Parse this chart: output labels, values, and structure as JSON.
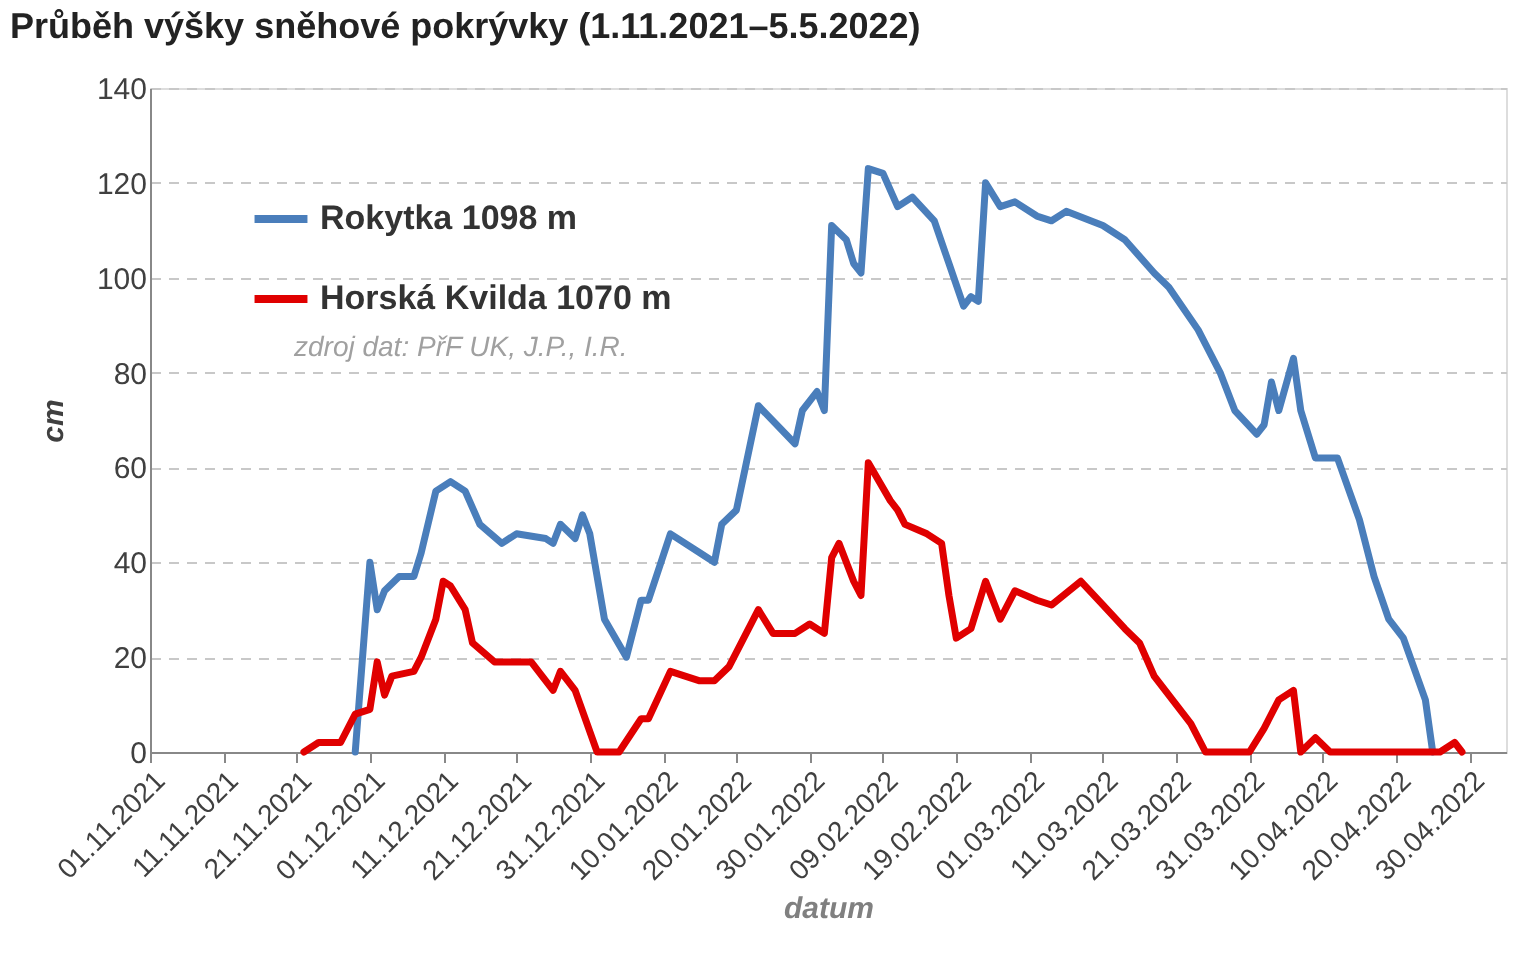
{
  "chart_data": {
    "type": "line",
    "title": "Průběh výšky sněhové pokrývky (1.11.2021–5.5.2022)",
    "xlabel": "datum",
    "ylabel": "cm",
    "annotations": [
      "zdroj dat: PřF UK,  J.P., I.R."
    ],
    "xlim": [
      "2021-11-01",
      "2022-05-05"
    ],
    "xticks": [
      {
        "value": "2021-11-01",
        "label": "01.11.2021"
      },
      {
        "value": "2021-11-11",
        "label": "11.11.2021"
      },
      {
        "value": "2021-11-21",
        "label": "21.11.2021"
      },
      {
        "value": "2021-12-01",
        "label": "01.12.2021"
      },
      {
        "value": "2021-12-11",
        "label": "11.12.2021"
      },
      {
        "value": "2021-12-21",
        "label": "21.12.2021"
      },
      {
        "value": "2021-12-31",
        "label": "31.12.2021"
      },
      {
        "value": "2022-01-10",
        "label": "10.01.2022"
      },
      {
        "value": "2022-01-20",
        "label": "20.01.2022"
      },
      {
        "value": "2022-01-30",
        "label": "30.01.2022"
      },
      {
        "value": "2022-02-09",
        "label": "09.02.2022"
      },
      {
        "value": "2022-02-19",
        "label": "19.02.2022"
      },
      {
        "value": "2022-03-01",
        "label": "01.03.2022"
      },
      {
        "value": "2022-03-11",
        "label": "11.03.2022"
      },
      {
        "value": "2022-03-21",
        "label": "21.03.2022"
      },
      {
        "value": "2022-03-31",
        "label": "31.03.2022"
      },
      {
        "value": "2022-04-10",
        "label": "10.04.2022"
      },
      {
        "value": "2022-04-20",
        "label": "20.04.2022"
      },
      {
        "value": "2022-04-30",
        "label": "30.04.2022"
      }
    ],
    "ylim": [
      0,
      140
    ],
    "yticks": [
      0,
      20,
      40,
      60,
      80,
      100,
      120,
      140
    ],
    "grid": "y",
    "legend": "top left",
    "marker": "none",
    "line_style": "solid",
    "series": [
      {
        "name": "Rokytka 1098 m",
        "color": "#4a7ebb",
        "x": [
          "2021-11-29",
          "2021-12-01",
          "2021-12-02",
          "2021-12-03",
          "2021-12-05",
          "2021-12-07",
          "2021-12-08",
          "2021-12-10",
          "2021-12-12",
          "2021-12-14",
          "2021-12-16",
          "2021-12-19",
          "2021-12-21",
          "2021-12-25",
          "2021-12-26",
          "2021-12-27",
          "2021-12-29",
          "2021-12-30",
          "2021-12-31",
          "2022-01-02",
          "2022-01-05",
          "2022-01-07",
          "2022-01-08",
          "2022-01-11",
          "2022-01-15",
          "2022-01-17",
          "2022-01-18",
          "2022-01-20",
          "2022-01-23",
          "2022-01-28",
          "2022-01-29",
          "2022-01-31",
          "2022-02-01",
          "2022-02-02",
          "2022-02-04",
          "2022-02-05",
          "2022-02-06",
          "2022-02-07",
          "2022-02-09",
          "2022-02-11",
          "2022-02-13",
          "2022-02-16",
          "2022-02-18",
          "2022-02-20",
          "2022-02-21",
          "2022-02-22",
          "2022-02-23",
          "2022-02-25",
          "2022-02-27",
          "2022-03-02",
          "2022-03-04",
          "2022-03-06",
          "2022-03-11",
          "2022-03-14",
          "2022-03-18",
          "2022-03-20",
          "2022-03-24",
          "2022-03-27",
          "2022-03-29",
          "2022-04-01",
          "2022-04-02",
          "2022-04-03",
          "2022-04-04",
          "2022-04-06",
          "2022-04-07",
          "2022-04-09",
          "2022-04-12",
          "2022-04-15",
          "2022-04-17",
          "2022-04-19",
          "2022-04-21",
          "2022-04-24",
          "2022-04-25"
        ],
        "values": [
          0,
          40,
          30,
          34,
          37,
          37,
          42,
          55,
          57,
          55,
          48,
          44,
          46,
          45,
          44,
          48,
          45,
          50,
          46,
          28,
          20,
          32,
          32,
          46,
          42,
          40,
          48,
          51,
          73,
          65,
          72,
          76,
          72,
          111,
          108,
          103,
          101,
          123,
          122,
          115,
          117,
          112,
          103,
          94,
          96,
          95,
          120,
          115,
          116,
          113,
          112,
          114,
          111,
          108,
          101,
          98,
          89,
          80,
          72,
          67,
          69,
          78,
          72,
          83,
          72,
          62,
          62,
          49,
          37,
          28,
          24,
          11,
          0
        ]
      },
      {
        "name": "Horská Kvilda 1070 m",
        "color": "#e00000",
        "x": [
          "2021-11-22",
          "2021-11-24",
          "2021-11-27",
          "2021-11-29",
          "2021-12-01",
          "2021-12-02",
          "2021-12-03",
          "2021-12-04",
          "2021-12-07",
          "2021-12-08",
          "2021-12-10",
          "2021-12-11",
          "2021-12-12",
          "2021-12-14",
          "2021-12-15",
          "2021-12-18",
          "2021-12-23",
          "2021-12-26",
          "2021-12-27",
          "2021-12-29",
          "2022-01-01",
          "2022-01-04",
          "2022-01-07",
          "2022-01-08",
          "2022-01-11",
          "2022-01-15",
          "2022-01-17",
          "2022-01-19",
          "2022-01-22",
          "2022-01-23",
          "2022-01-25",
          "2022-01-28",
          "2022-01-30",
          "2022-02-01",
          "2022-02-02",
          "2022-02-03",
          "2022-02-05",
          "2022-02-06",
          "2022-02-07",
          "2022-02-10",
          "2022-02-11",
          "2022-02-12",
          "2022-02-15",
          "2022-02-17",
          "2022-02-18",
          "2022-02-19",
          "2022-02-21",
          "2022-02-23",
          "2022-02-25",
          "2022-02-27",
          "2022-03-02",
          "2022-03-04",
          "2022-03-08",
          "2022-03-11",
          "2022-03-14",
          "2022-03-16",
          "2022-03-18",
          "2022-03-20",
          "2022-03-23",
          "2022-03-25",
          "2022-03-31",
          "2022-04-02",
          "2022-04-04",
          "2022-04-06",
          "2022-04-07",
          "2022-04-09",
          "2022-04-11",
          "2022-04-26",
          "2022-04-28",
          "2022-04-29"
        ],
        "values": [
          0,
          2,
          2,
          8,
          9,
          19,
          12,
          16,
          17,
          20,
          28,
          36,
          35,
          30,
          23,
          19,
          19,
          13,
          17,
          13,
          0,
          0,
          7,
          7,
          17,
          15,
          15,
          18,
          27,
          30,
          25,
          25,
          27,
          25,
          41,
          44,
          36,
          33,
          61,
          53,
          51,
          48,
          46,
          44,
          33,
          24,
          26,
          36,
          28,
          34,
          32,
          31,
          36,
          31,
          26,
          23,
          16,
          12,
          6,
          0,
          0,
          5,
          11,
          13,
          0,
          3,
          0,
          0,
          2,
          0
        ]
      }
    ]
  }
}
